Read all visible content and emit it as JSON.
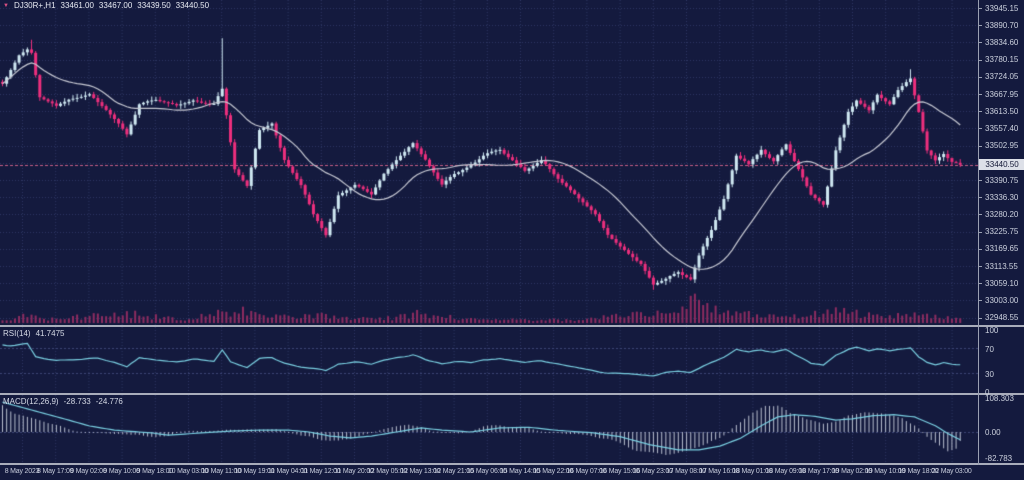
{
  "header": {
    "symbol": "DJ30R+,H1",
    "open": "33461.00",
    "high": "33467.00",
    "low": "33439.50",
    "close": "33440.50"
  },
  "colors": {
    "background": "#141a3e",
    "grid": "#2f3764",
    "bull": "#cfe8f2",
    "bear": "#ed2f7d",
    "volume": "#8e2c60",
    "ma_line": "#c6c8d2",
    "indicator_line": "#7ad0e2",
    "histogram": "#b9bfcf",
    "level_line": "#3d4677",
    "current_price_line": "#c75e86",
    "axis_text": "#ccd1de",
    "separator": "#a9adbb",
    "price_box_bg": "#dde0e8",
    "price_box_text": "#121634"
  },
  "chart_data": {
    "type": "candlestick",
    "title": "DJ30R+,H1",
    "timeframe": "H1",
    "legend_note": "main panel: candles + MA(20) + volume; subpanels: RSI(14), MACD(12,26,9)",
    "price_axis": {
      "ticks": [
        "33945.15",
        "33890.70",
        "33834.60",
        "33780.15",
        "33724.05",
        "33667.95",
        "33613.50",
        "33557.40",
        "33502.95",
        "",
        "33390.75",
        "33336.30",
        "33280.20",
        "33225.75",
        "33169.65",
        "33113.55",
        "33059.10",
        "33003.00",
        "32948.55"
      ],
      "current": "33440.50"
    },
    "time_axis": {
      "ticks": [
        "8 May 2023",
        "8 May 17:00",
        "9 May 02:00",
        "9 May 10:00",
        "9 May 18:00",
        "10 May 03:00",
        "10 May 11:00",
        "10 May 19:00",
        "11 May 04:00",
        "11 May 12:00",
        "11 May 20:00",
        "12 May 05:00",
        "12 May 13:00",
        "12 May 21:00",
        "15 May 06:00",
        "15 May 14:00",
        "15 May 22:00",
        "16 May 07:00",
        "16 May 15:00",
        "16 May 23:00",
        "17 May 08:00",
        "17 May 16:00",
        "18 May 01:00",
        "18 May 09:00",
        "18 May 17:00",
        "19 May 02:00",
        "19 May 10:00",
        "19 May 18:00",
        "22 May 03:00"
      ]
    },
    "candles": {
      "count": 232,
      "close_anchors": [
        [
          0,
          33700
        ],
        [
          2,
          33745
        ],
        [
          4,
          33790
        ],
        [
          6,
          33810
        ],
        [
          7,
          33800
        ],
        [
          9,
          33660
        ],
        [
          13,
          33630
        ],
        [
          16,
          33650
        ],
        [
          21,
          33665
        ],
        [
          25,
          33615
        ],
        [
          28,
          33570
        ],
        [
          30,
          33535
        ],
        [
          33,
          33635
        ],
        [
          37,
          33650
        ],
        [
          42,
          33630
        ],
        [
          46,
          33650
        ],
        [
          51,
          33635
        ],
        [
          53,
          33680
        ],
        [
          56,
          33425
        ],
        [
          59,
          33375
        ],
        [
          62,
          33550
        ],
        [
          65,
          33570
        ],
        [
          68,
          33455
        ],
        [
          72,
          33375
        ],
        [
          75,
          33280
        ],
        [
          78,
          33215
        ],
        [
          81,
          33345
        ],
        [
          85,
          33375
        ],
        [
          89,
          33345
        ],
        [
          92,
          33410
        ],
        [
          96,
          33470
        ],
        [
          99,
          33510
        ],
        [
          102,
          33455
        ],
        [
          106,
          33375
        ],
        [
          109,
          33410
        ],
        [
          113,
          33440
        ],
        [
          116,
          33470
        ],
        [
          120,
          33490
        ],
        [
          123,
          33455
        ],
        [
          126,
          33425
        ],
        [
          130,
          33455
        ],
        [
          133,
          33410
        ],
        [
          136,
          33375
        ],
        [
          139,
          33330
        ],
        [
          143,
          33280
        ],
        [
          146,
          33215
        ],
        [
          150,
          33165
        ],
        [
          154,
          33120
        ],
        [
          157,
          33055
        ],
        [
          160,
          33070
        ],
        [
          163,
          33095
        ],
        [
          166,
          33075
        ],
        [
          168,
          33150
        ],
        [
          171,
          33230
        ],
        [
          174,
          33330
        ],
        [
          177,
          33470
        ],
        [
          180,
          33440
        ],
        [
          183,
          33490
        ],
        [
          186,
          33455
        ],
        [
          189,
          33505
        ],
        [
          192,
          33425
        ],
        [
          195,
          33345
        ],
        [
          198,
          33310
        ],
        [
          201,
          33490
        ],
        [
          204,
          33615
        ],
        [
          206,
          33650
        ],
        [
          209,
          33615
        ],
        [
          211,
          33665
        ],
        [
          214,
          33635
        ],
        [
          216,
          33680
        ],
        [
          219,
          33720
        ],
        [
          221,
          33615
        ],
        [
          223,
          33490
        ],
        [
          225,
          33455
        ],
        [
          227,
          33475
        ],
        [
          229,
          33450
        ],
        [
          231,
          33440.5
        ]
      ],
      "wick_events": [
        [
          7,
          "high",
          33843
        ],
        [
          53,
          "high",
          33848
        ],
        [
          78,
          "low",
          33206
        ],
        [
          157,
          "low",
          33038
        ],
        [
          219,
          "high",
          33748
        ]
      ]
    },
    "ma": {
      "period": 20
    },
    "volume": {
      "anchors": [
        [
          0,
          6
        ],
        [
          6,
          10
        ],
        [
          10,
          6
        ],
        [
          25,
          12
        ],
        [
          30,
          14
        ],
        [
          35,
          10
        ],
        [
          45,
          5
        ],
        [
          53,
          16
        ],
        [
          57,
          18
        ],
        [
          62,
          10
        ],
        [
          70,
          8
        ],
        [
          78,
          12
        ],
        [
          85,
          6
        ],
        [
          95,
          8
        ],
        [
          100,
          14
        ],
        [
          105,
          10
        ],
        [
          112,
          6
        ],
        [
          120,
          5
        ],
        [
          130,
          4
        ],
        [
          140,
          6
        ],
        [
          150,
          10
        ],
        [
          157,
          14
        ],
        [
          162,
          12
        ],
        [
          166,
          28
        ],
        [
          168,
          32
        ],
        [
          170,
          22
        ],
        [
          174,
          16
        ],
        [
          178,
          14
        ],
        [
          183,
          10
        ],
        [
          188,
          8
        ],
        [
          193,
          12
        ],
        [
          198,
          14
        ],
        [
          202,
          18
        ],
        [
          206,
          14
        ],
        [
          210,
          10
        ],
        [
          214,
          8
        ],
        [
          218,
          12
        ],
        [
          222,
          14
        ],
        [
          226,
          10
        ],
        [
          231,
          7
        ]
      ]
    },
    "rsi": {
      "label": "RSI(14)",
      "value": "41.7475",
      "axis_ticks": [
        "100",
        "70",
        "30",
        "0"
      ],
      "levels": [
        70,
        30
      ],
      "anchors": [
        [
          0,
          73
        ],
        [
          6,
          76
        ],
        [
          8,
          55
        ],
        [
          13,
          50
        ],
        [
          18,
          52
        ],
        [
          23,
          53
        ],
        [
          27,
          47
        ],
        [
          30,
          40
        ],
        [
          33,
          56
        ],
        [
          37,
          51
        ],
        [
          42,
          48
        ],
        [
          46,
          52
        ],
        [
          51,
          49
        ],
        [
          53,
          67
        ],
        [
          55,
          48
        ],
        [
          59,
          39
        ],
        [
          62,
          53
        ],
        [
          65,
          54
        ],
        [
          68,
          46
        ],
        [
          72,
          40
        ],
        [
          75,
          36
        ],
        [
          78,
          33
        ],
        [
          81,
          46
        ],
        [
          85,
          48
        ],
        [
          89,
          45
        ],
        [
          92,
          51
        ],
        [
          96,
          56
        ],
        [
          99,
          59
        ],
        [
          102,
          51
        ],
        [
          106,
          44
        ],
        [
          109,
          48
        ],
        [
          113,
          47
        ],
        [
          116,
          51
        ],
        [
          120,
          53
        ],
        [
          123,
          49
        ],
        [
          126,
          46
        ],
        [
          130,
          49
        ],
        [
          133,
          45
        ],
        [
          136,
          41
        ],
        [
          139,
          38
        ],
        [
          143,
          34
        ],
        [
          146,
          31
        ],
        [
          150,
          29
        ],
        [
          154,
          27
        ],
        [
          157,
          25
        ],
        [
          160,
          30
        ],
        [
          163,
          33
        ],
        [
          166,
          31
        ],
        [
          168,
          36
        ],
        [
          171,
          46
        ],
        [
          174,
          56
        ],
        [
          177,
          69
        ],
        [
          180,
          63
        ],
        [
          183,
          67
        ],
        [
          186,
          63
        ],
        [
          189,
          67
        ],
        [
          192,
          56
        ],
        [
          195,
          46
        ],
        [
          198,
          43
        ],
        [
          201,
          59
        ],
        [
          204,
          68
        ],
        [
          206,
          70
        ],
        [
          209,
          65
        ],
        [
          211,
          68
        ],
        [
          214,
          64
        ],
        [
          216,
          67
        ],
        [
          219,
          70
        ],
        [
          221,
          55
        ],
        [
          223,
          46
        ],
        [
          225,
          43
        ],
        [
          227,
          47
        ],
        [
          229,
          44
        ],
        [
          231,
          41.75
        ]
      ]
    },
    "macd": {
      "label": "MACD(12,26,9)",
      "main_value": "-28.733",
      "signal_value": "-24.776",
      "axis_ticks": [
        "108.303",
        "0.00",
        "-82.783"
      ],
      "anchors": [
        [
          0,
          95
        ],
        [
          7,
          70
        ],
        [
          14,
          45
        ],
        [
          21,
          19
        ],
        [
          27,
          6
        ],
        [
          36,
          -3
        ],
        [
          40,
          -10
        ],
        [
          48,
          -3
        ],
        [
          55,
          3
        ],
        [
          62,
          6
        ],
        [
          69,
          6
        ],
        [
          74,
          0
        ],
        [
          79,
          -13
        ],
        [
          84,
          -19
        ],
        [
          89,
          -13
        ],
        [
          95,
          0
        ],
        [
          101,
          13
        ],
        [
          106,
          6
        ],
        [
          113,
          0
        ],
        [
          120,
          13
        ],
        [
          127,
          15
        ],
        [
          134,
          5
        ],
        [
          142,
          -2
        ],
        [
          149,
          -15
        ],
        [
          156,
          -40
        ],
        [
          163,
          -57
        ],
        [
          168,
          -57
        ],
        [
          173,
          -45
        ],
        [
          178,
          -20
        ],
        [
          183,
          20
        ],
        [
          187,
          48
        ],
        [
          191,
          55
        ],
        [
          196,
          50
        ],
        [
          201,
          38
        ],
        [
          205,
          42
        ],
        [
          210,
          52
        ],
        [
          215,
          55
        ],
        [
          220,
          48
        ],
        [
          225,
          20
        ],
        [
          228,
          -5
        ],
        [
          231,
          -24.776
        ]
      ]
    }
  }
}
